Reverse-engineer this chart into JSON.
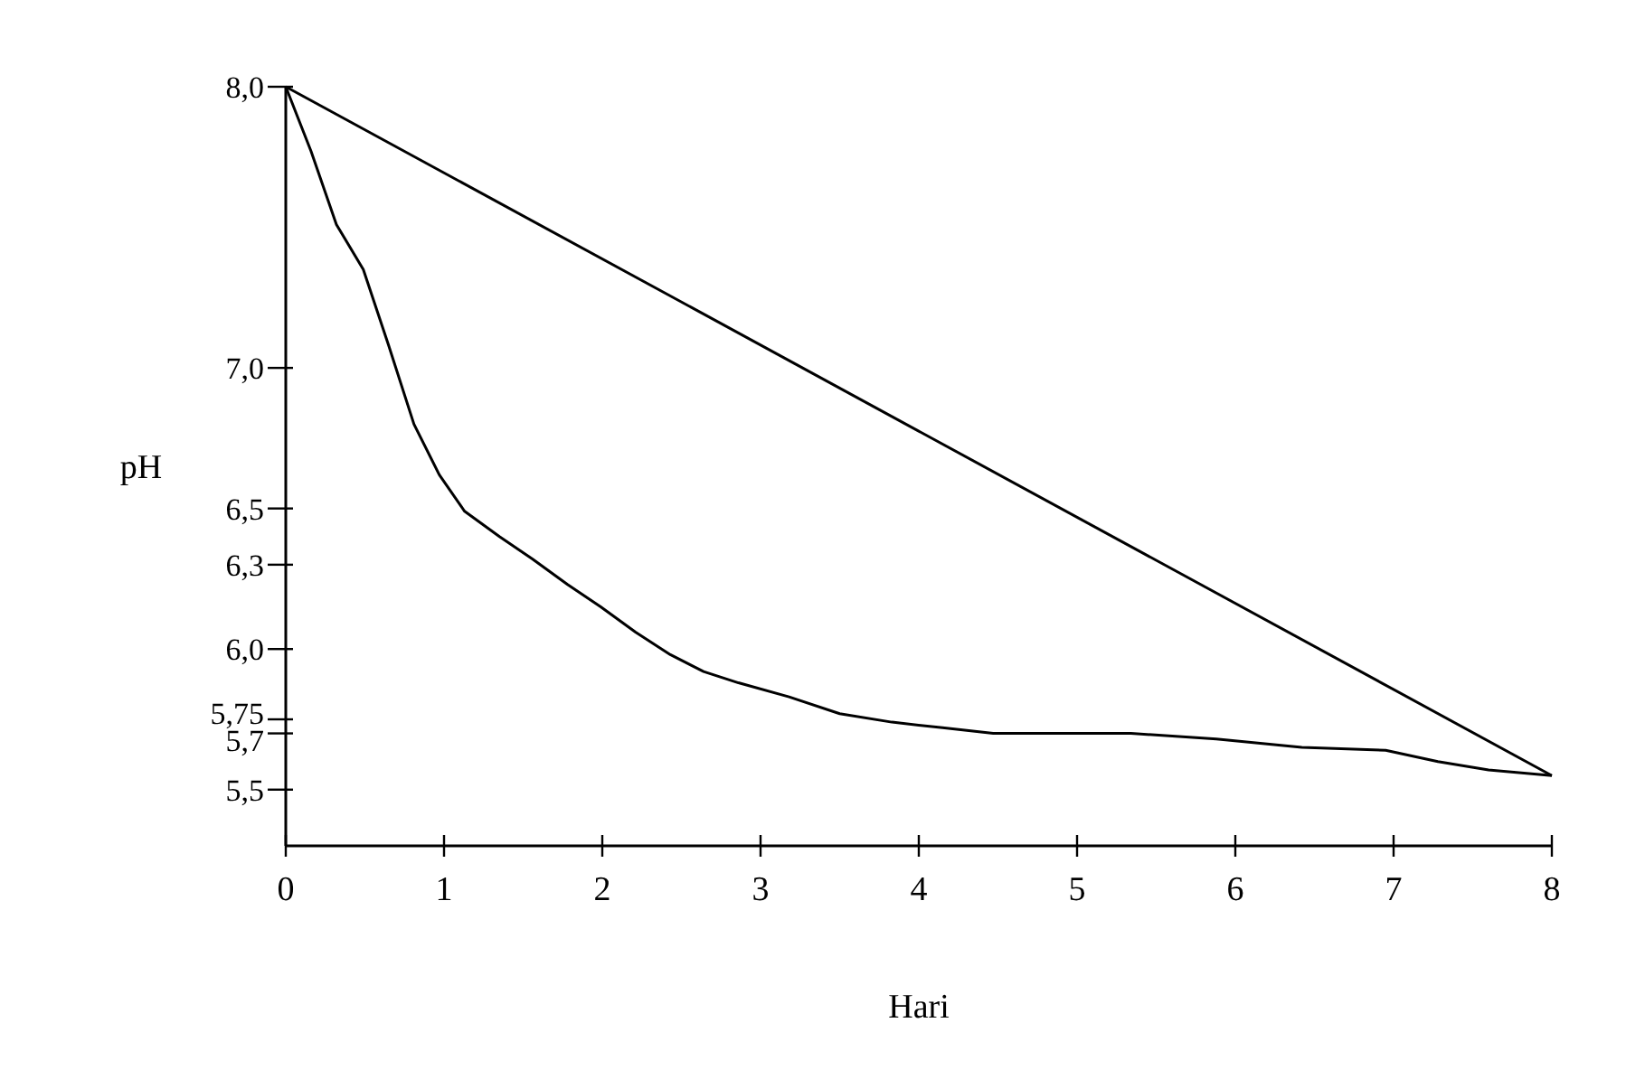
{
  "chart_data": {
    "type": "line",
    "xlabel": "Hari",
    "ylabel": "pH",
    "xlim": [
      0,
      8
    ],
    "xticks": [
      0,
      1,
      2,
      3,
      4,
      5,
      6,
      7,
      8
    ],
    "ylim": [
      5.3,
      8.0
    ],
    "yticks": [
      {
        "value": 8.0,
        "label": "8,0"
      },
      {
        "value": 7.0,
        "label": "7,0"
      },
      {
        "value": 6.5,
        "label": "6,5"
      },
      {
        "value": 6.3,
        "label": "6,3"
      },
      {
        "value": 6.0,
        "label": "6,0"
      },
      {
        "value": 5.75,
        "label": "5,75"
      },
      {
        "value": 5.7,
        "label": "5,7"
      },
      {
        "value": 5.5,
        "label": "5,5"
      }
    ],
    "grid": false,
    "marker": "none",
    "line_style": "solid",
    "series": [
      {
        "color": "#000000",
        "x": [
          0,
          8
        ],
        "values": [
          8.0,
          5.55
        ]
      },
      {
        "color": "#000000",
        "x": [
          0,
          0.16,
          0.32,
          0.49,
          0.65,
          0.81,
          0.97,
          1.13,
          1.35,
          1.56,
          1.78,
          1.99,
          2.21,
          2.43,
          2.64,
          2.86,
          3.18,
          3.5,
          3.83,
          4.15,
          4.47,
          4.8,
          5.34,
          5.88,
          6.42,
          6.95,
          7.28,
          7.6,
          8.0
        ],
        "values": [
          8.0,
          7.77,
          7.51,
          7.35,
          7.08,
          6.8,
          6.62,
          6.49,
          6.4,
          6.32,
          6.23,
          6.15,
          6.06,
          5.98,
          5.92,
          5.88,
          5.83,
          5.77,
          5.74,
          5.72,
          5.7,
          5.7,
          5.7,
          5.68,
          5.65,
          5.64,
          5.6,
          5.57,
          5.55
        ]
      }
    ]
  }
}
